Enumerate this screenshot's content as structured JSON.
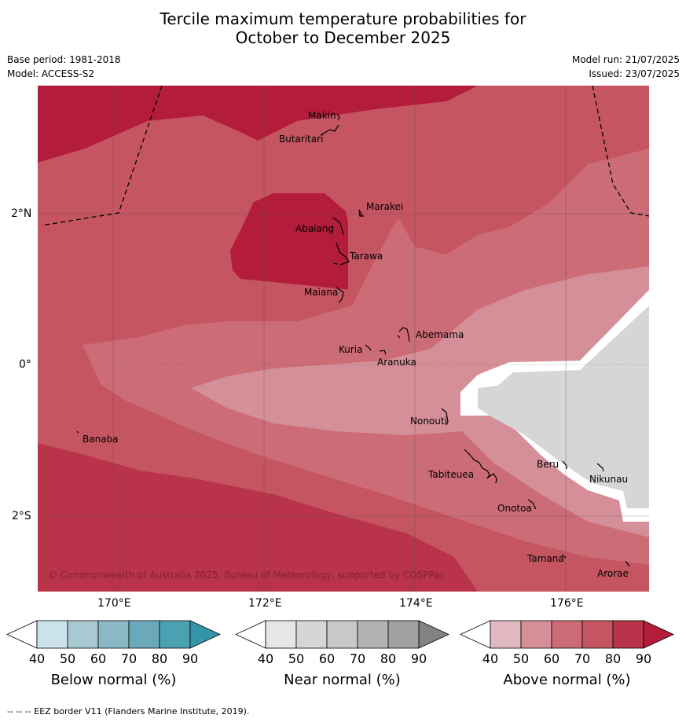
{
  "header": {
    "title_line1": "Tercile maximum temperature probabilities for",
    "title_line2": "October to December 2025",
    "base_period": "Base period: 1981-2018",
    "model": "Model: ACCESS-S2",
    "model_run": "Model run: 21/07/2025",
    "issued": "Issued: 23/07/2025"
  },
  "map": {
    "lat_labels": [
      "2°N",
      "0°",
      "2°S"
    ],
    "lon_labels": [
      "170°E",
      "172°E",
      "174°E",
      "176°E"
    ],
    "places": [
      "Makin",
      "Butaritari",
      "Marakei",
      "Abaiang",
      "Tarawa",
      "Maiana",
      "Abemama",
      "Kuria",
      "Aranuka",
      "Banaba",
      "Nonouti",
      "Beru",
      "Tabiteuea",
      "Nikunau",
      "Onotoa",
      "Tamana",
      "Arorae"
    ],
    "copyright": "© Commonwealth of Australia 2025, Bureau of Meteorology, supported by COSPPac"
  },
  "colorbars": [
    {
      "label": "Below normal (%)",
      "ticks": [
        "40",
        "50",
        "60",
        "70",
        "80",
        "90"
      ],
      "colors": [
        "#ffffff",
        "#cbe2ea",
        "#a9c9d2",
        "#8ab8c5",
        "#6aa9ba",
        "#49a1b2",
        "#3594a8"
      ]
    },
    {
      "label": "Near normal (%)",
      "ticks": [
        "40",
        "50",
        "60",
        "70",
        "80",
        "90"
      ],
      "colors": [
        "#ffffff",
        "#e6e6e6",
        "#d6d6d6",
        "#c8c8c8",
        "#b3b3b3",
        "#a0a0a0",
        "#828282"
      ]
    },
    {
      "label": "Above normal (%)",
      "ticks": [
        "40",
        "50",
        "60",
        "70",
        "80",
        "90"
      ],
      "colors": [
        "#ffffff",
        "#e2b8c0",
        "#d58f98",
        "#cc6c76",
        "#c55561",
        "#b9334a",
        "#b31c3b"
      ]
    }
  ],
  "footer": "--  --  -- EEZ border V11 (Flanders Marine Institute, 2019).",
  "colors": {
    "above_50_60": "#d58f98",
    "above_60_70": "#cc6c76",
    "above_70_80": "#c55561",
    "above_80_90": "#b9334a",
    "above_90": "#b31c3b",
    "near_normal_dominant": "#d6d6d6"
  }
}
